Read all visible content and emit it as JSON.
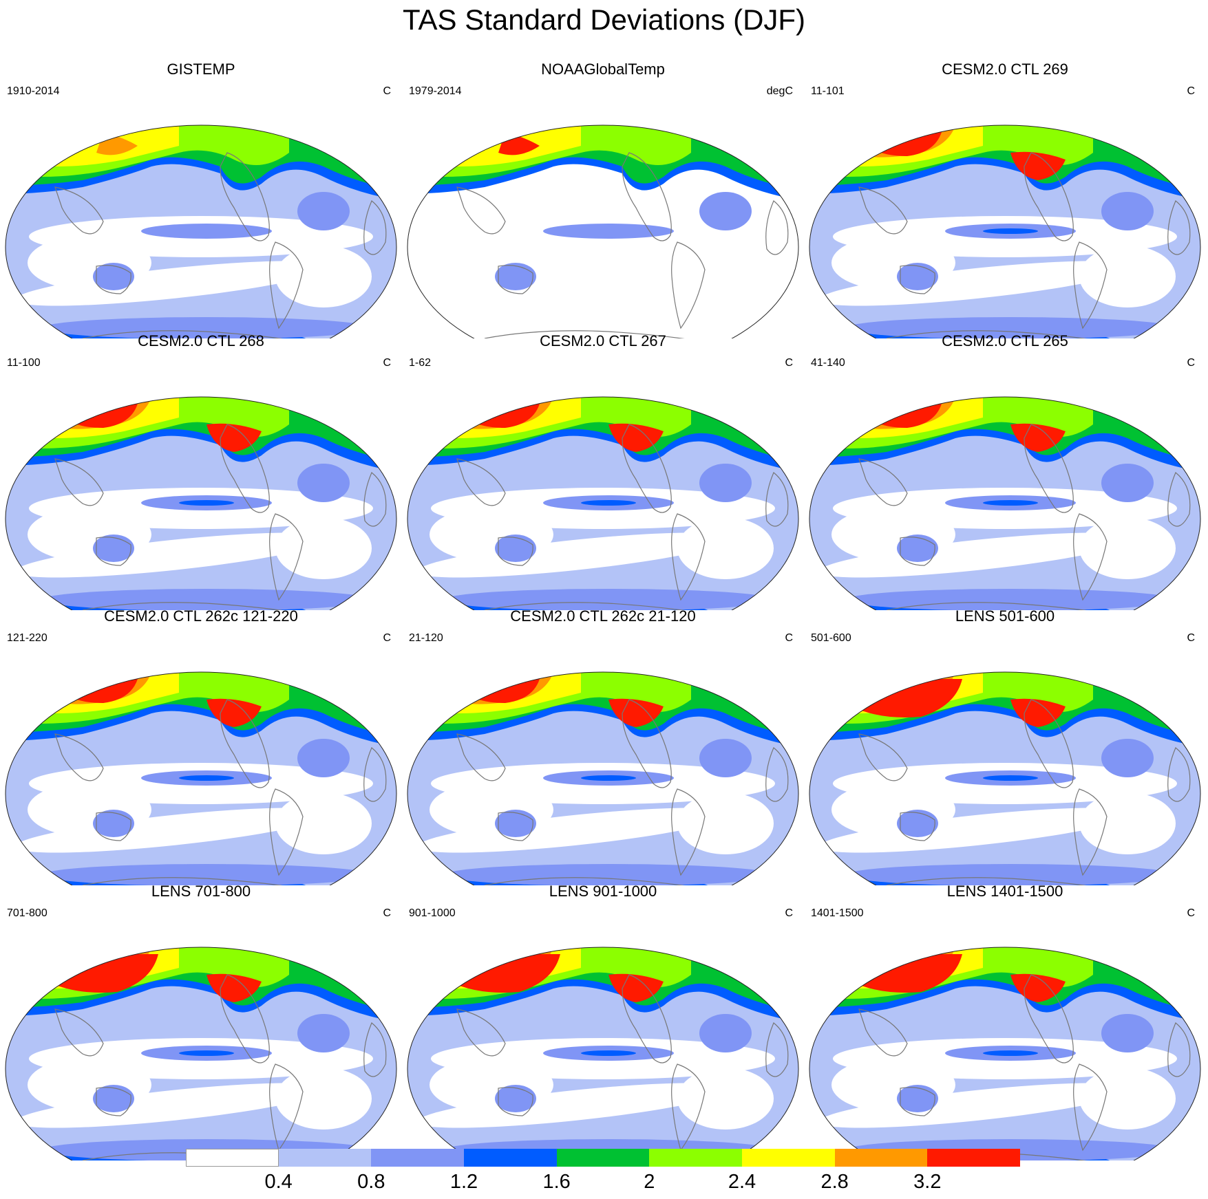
{
  "title": "TAS Standard Deviations (DJF)",
  "panels": [
    {
      "title": "GISTEMP",
      "left": "1910-2014",
      "right": "C",
      "style": "obs1"
    },
    {
      "title": "NOAAGlobalTemp",
      "left": "1979-2014",
      "right": "degC",
      "style": "obs2"
    },
    {
      "title": "CESM2.0 CTL 269",
      "left": "11-101",
      "right": "C",
      "style": "ctl"
    },
    {
      "title": "CESM2.0 CTL 268",
      "left": "11-100",
      "right": "C",
      "style": "ctl"
    },
    {
      "title": "CESM2.0 CTL 267",
      "left": "1-62",
      "right": "C",
      "style": "ctl"
    },
    {
      "title": "CESM2.0 CTL 265",
      "left": "41-140",
      "right": "C",
      "style": "ctl"
    },
    {
      "title": "CESM2.0 CTL 262c 121-220",
      "left": "121-220",
      "right": "C",
      "style": "ctl"
    },
    {
      "title": "CESM2.0 CTL 262c 21-120",
      "left": "21-120",
      "right": "C",
      "style": "ctl"
    },
    {
      "title": "LENS 501-600",
      "left": "501-600",
      "right": "C",
      "style": "lens"
    },
    {
      "title": "LENS 701-800",
      "left": "701-800",
      "right": "C",
      "style": "lens"
    },
    {
      "title": "LENS 901-1000",
      "left": "901-1000",
      "right": "C",
      "style": "lens"
    },
    {
      "title": "LENS 1401-1500",
      "left": "1401-1500",
      "right": "C",
      "style": "lens"
    }
  ],
  "colorbar": {
    "colors": [
      "#ffffff",
      "#b3c3f7",
      "#8095f5",
      "#005cff",
      "#00c132",
      "#8cff00",
      "#ffff00",
      "#ff9900",
      "#ff1a00"
    ],
    "labels": [
      "0.4",
      "0.8",
      "1.2",
      "1.6",
      "2",
      "2.4",
      "2.8",
      "3.2"
    ]
  }
}
